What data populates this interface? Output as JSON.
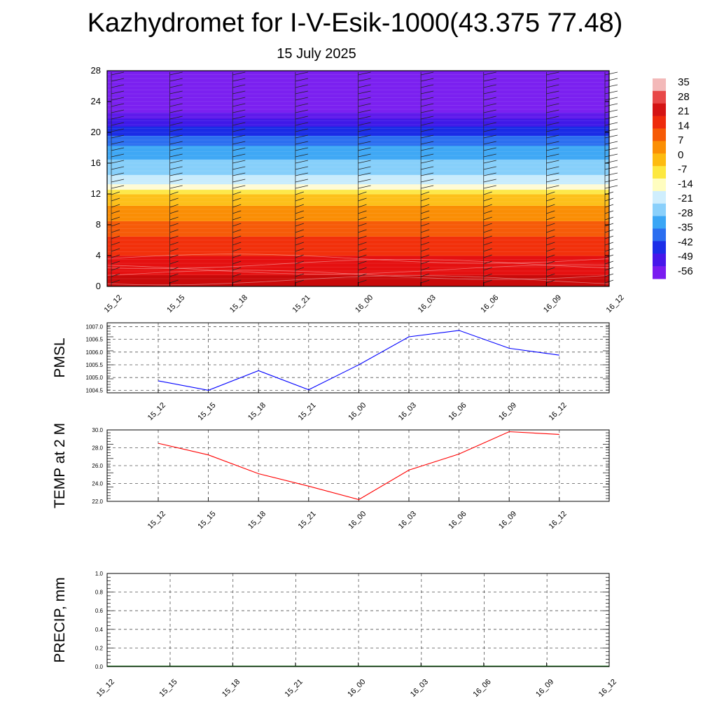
{
  "page": {
    "title": "Kazhydromet for I-V-Esik-1000(43.375 77.48)",
    "subtitle": "15 July 2025"
  },
  "chart_data": [
    {
      "type": "heatmap",
      "id": "temperature-cross-section",
      "x_ticks": [
        "15_12",
        "15_15",
        "15_18",
        "15_21",
        "16_00",
        "16_03",
        "16_06",
        "16_09",
        "16_12"
      ],
      "y_ticks": [
        0,
        4,
        8,
        12,
        16,
        20,
        24,
        28
      ],
      "ylim": [
        0,
        28
      ],
      "colorbar": {
        "labels": [
          "35",
          "28",
          "21",
          "14",
          "7",
          "0",
          "-7",
          "-14",
          "-21",
          "-28",
          "-35",
          "-42",
          "-49",
          "-56"
        ],
        "colors": [
          "#f3b9b9",
          "#e84848",
          "#d41414",
          "#ee2b0c",
          "#f65a06",
          "#fb8f04",
          "#fdbb10",
          "#fde840",
          "#fffdc0",
          "#cfeefd",
          "#8ad0fb",
          "#3ba6f5",
          "#2b6ef0",
          "#1b2ee8",
          "#4717ea",
          "#7a1cf0"
        ]
      },
      "bands": [
        {
          "from": 0,
          "to": 1.5,
          "color": "#c90a0a"
        },
        {
          "from": 1.5,
          "to": 4,
          "color": "#e51010"
        },
        {
          "from": 4,
          "to": 6.5,
          "color": "#f2300b"
        },
        {
          "from": 6.5,
          "to": 8.5,
          "color": "#f65b08"
        },
        {
          "from": 8.5,
          "to": 10.5,
          "color": "#fa8e05"
        },
        {
          "from": 10.5,
          "to": 12,
          "color": "#fdc01a"
        },
        {
          "from": 12,
          "to": 12.6,
          "color": "#fde84a"
        },
        {
          "from": 12.6,
          "to": 13.3,
          "color": "#fffbd5"
        },
        {
          "from": 13.3,
          "to": 14.5,
          "color": "#c9ecfc"
        },
        {
          "from": 14.5,
          "to": 16.5,
          "color": "#86cffa"
        },
        {
          "from": 16.5,
          "to": 18.3,
          "color": "#3fa8f5"
        },
        {
          "from": 18.3,
          "to": 19.6,
          "color": "#2c6ff0"
        },
        {
          "from": 19.6,
          "to": 20.8,
          "color": "#1a2ce6"
        },
        {
          "from": 20.8,
          "to": 21.8,
          "color": "#3f18e8"
        },
        {
          "from": 21.8,
          "to": 22.6,
          "color": "#5e1aeb"
        },
        {
          "from": 22.6,
          "to": 28,
          "color": "#7b20f0"
        }
      ]
    },
    {
      "type": "line",
      "id": "pmsl",
      "ylabel": "PMSL",
      "categories": [
        "15_12",
        "15_15",
        "15_18",
        "15_21",
        "16_00",
        "16_03",
        "16_06",
        "16_09",
        "16_12"
      ],
      "values": [
        1004.87,
        1004.5,
        1005.27,
        1004.52,
        1005.5,
        1006.6,
        1006.85,
        1006.15,
        1005.88
      ],
      "ylim": [
        1004.4,
        1007.15
      ],
      "y_ticks": [
        "1004.5",
        "1005.0",
        "1005.5",
        "1006.0",
        "1006.5",
        "1007.0"
      ],
      "color": "#0000ff",
      "grid": true
    },
    {
      "type": "line",
      "id": "temp-2m",
      "ylabel": "TEMP at 2 M",
      "categories": [
        "15_12",
        "15_15",
        "15_18",
        "15_21",
        "16_00",
        "16_03",
        "16_06",
        "16_09",
        "16_12"
      ],
      "values": [
        28.5,
        27.2,
        25.1,
        23.7,
        22.2,
        25.5,
        27.3,
        29.8,
        29.5
      ],
      "ylim": [
        22.0,
        30.0
      ],
      "y_ticks": [
        "22.0",
        "24.0",
        "26.0",
        "28.0",
        "30.0"
      ],
      "color": "#ff0000",
      "grid": true
    },
    {
      "type": "line",
      "id": "precip",
      "ylabel": "PRECIP, mm",
      "categories": [
        "15_12",
        "15_15",
        "15_18",
        "15_21",
        "16_00",
        "16_03",
        "16_06",
        "16_09",
        "16_12"
      ],
      "values": [
        0,
        0,
        0,
        0,
        0,
        0,
        0,
        0,
        0
      ],
      "ylim": [
        0,
        1.0
      ],
      "y_ticks": [
        "0.0",
        "0.2",
        "0.4",
        "0.6",
        "0.8",
        "1.0"
      ],
      "color": "#007000",
      "grid": true
    }
  ]
}
